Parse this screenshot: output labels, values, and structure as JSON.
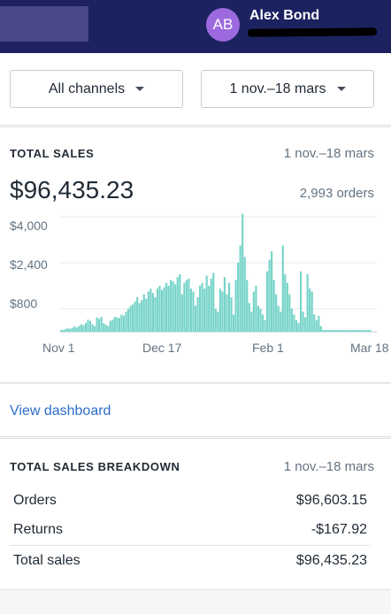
{
  "header": {
    "avatar_initials": "AB",
    "user_name": "Alex Bond"
  },
  "filters": {
    "channel": "All channels",
    "date_range": "1 nov.–18 mars"
  },
  "total_sales_card": {
    "title": "TOTAL SALES",
    "date_range": "1 nov.–18 mars",
    "total": "$96,435.23",
    "orders": "2,993 orders"
  },
  "chart_data": {
    "type": "bar",
    "title": "",
    "xlabel": "",
    "ylabel": "",
    "y_tick_labels": [
      "$4,000",
      "$2,400",
      "$800"
    ],
    "x_tick_labels": [
      "Nov 1",
      "Dec 17",
      "Feb 1",
      "Mar 18"
    ],
    "ylim": [
      0,
      4000
    ],
    "grid": true,
    "color": "#76d4c9",
    "start_label": "Nov 1",
    "values": [
      0,
      60,
      90,
      120,
      100,
      140,
      180,
      150,
      200,
      260,
      220,
      300,
      420,
      380,
      260,
      200,
      500,
      450,
      520,
      300,
      250,
      200,
      380,
      420,
      520,
      500,
      480,
      600,
      550,
      700,
      800,
      900,
      950,
      1050,
      1200,
      1000,
      1100,
      1300,
      1150,
      1400,
      1500,
      1350,
      1200,
      1500,
      1600,
      1450,
      1550,
      1700,
      1600,
      1800,
      1750,
      1650,
      1900,
      2000,
      1300,
      1700,
      1800,
      1850,
      1500,
      1400,
      900,
      1200,
      1600,
      1700,
      1500,
      1950,
      1600,
      1850,
      2050,
      800,
      700,
      1500,
      1400,
      1900,
      1300,
      1700,
      1200,
      600,
      1800,
      2400,
      3000,
      4100,
      2600,
      1800,
      1000,
      700,
      1400,
      1600,
      900,
      800,
      600,
      400,
      2100,
      2500,
      2800,
      1800,
      1300,
      900,
      700,
      3000,
      2000,
      1700,
      1300,
      800,
      600,
      400,
      300,
      2100,
      700,
      500,
      2000,
      1500,
      1400,
      600,
      400,
      550,
      200,
      0,
      0,
      0,
      0,
      0,
      0,
      0,
      0,
      0,
      0,
      0,
      0,
      0,
      0,
      0,
      0,
      0,
      0,
      0,
      0,
      0,
      0
    ]
  },
  "view_dashboard": {
    "label": "View dashboard"
  },
  "breakdown_card": {
    "title": "TOTAL SALES BREAKDOWN",
    "date_range": "1 nov.–18 mars",
    "rows": [
      {
        "label": "Orders",
        "value": "$96,603.15"
      },
      {
        "label": "Returns",
        "value": "-$167.92"
      },
      {
        "label": "Total sales",
        "value": "$96,435.23"
      }
    ]
  }
}
